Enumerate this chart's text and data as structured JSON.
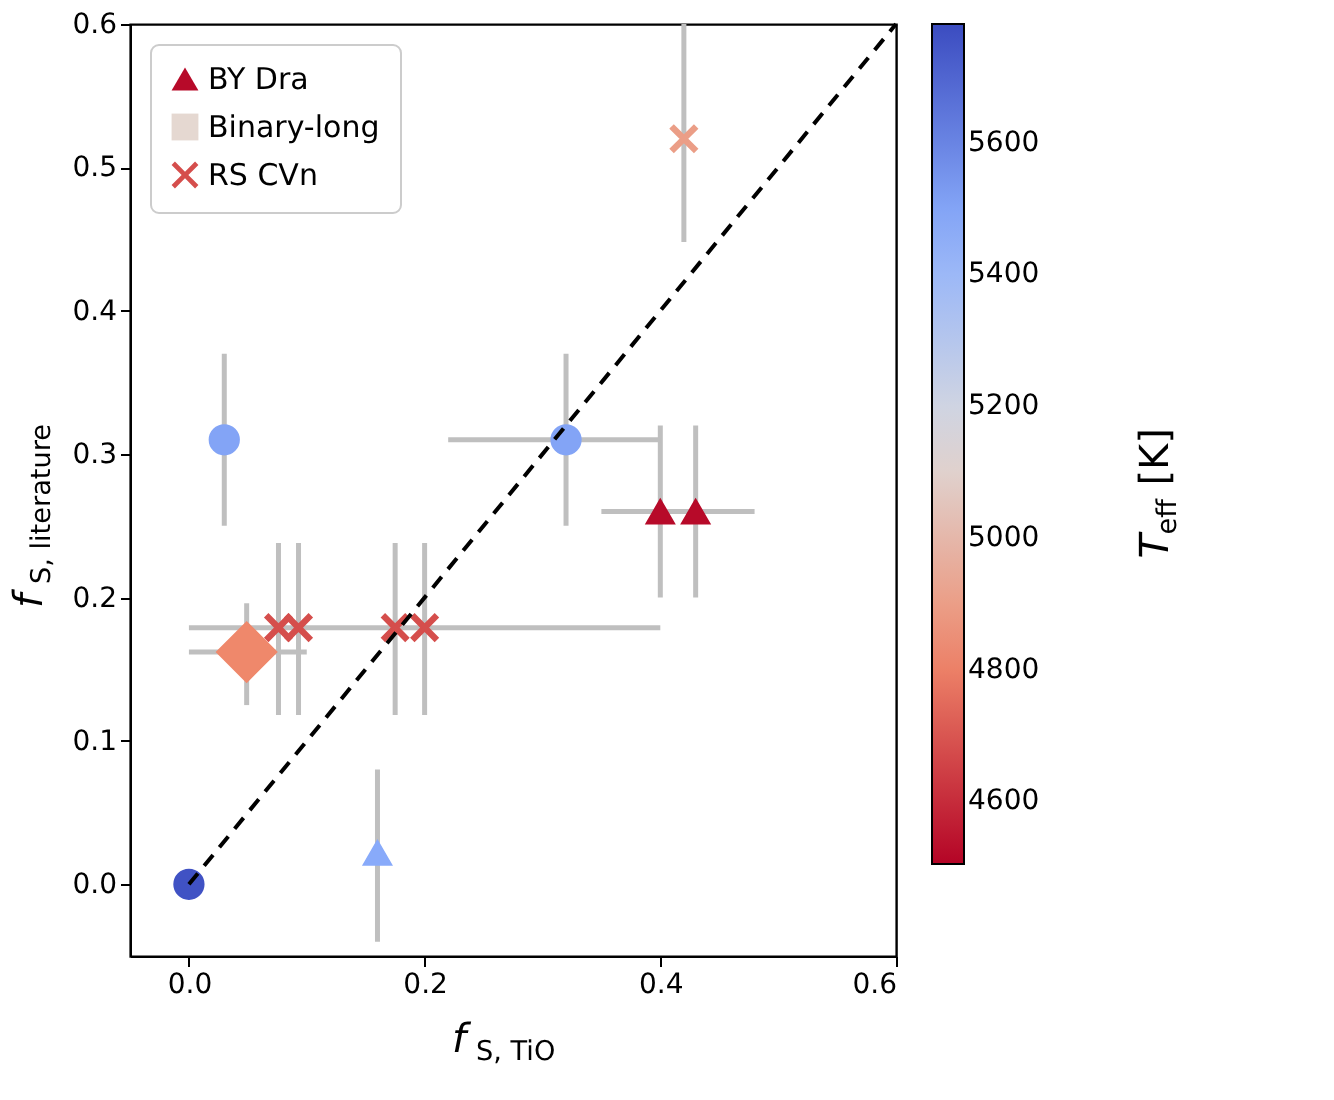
{
  "chart_data": {
    "type": "scatter",
    "xlabel": "f$_{S, TiO}$",
    "ylabel": "f$_{S, literature}$",
    "clabel": "T$_{eff}$ [K]",
    "xlim": [
      -0.05,
      0.6
    ],
    "ylim": [
      -0.05,
      0.6
    ],
    "xticks": [
      {
        "value": 0,
        "label": "0.0"
      },
      0.2,
      0.4,
      0.6
    ],
    "yticks": [
      {
        "value": 0,
        "label": "0.0"
      },
      0.1,
      0.2,
      0.3,
      0.4,
      0.5,
      0.6
    ],
    "clim": [
      4505,
      5780
    ],
    "cticks": [
      4600,
      4800,
      5000,
      5200,
      5400,
      5600
    ],
    "grid": false,
    "legend": "top left",
    "series": [
      {
        "name": "BY Dra",
        "marker": "triangle",
        "x": [
          0.4,
          0.43,
          0.16
        ],
        "values": [
          0.26,
          0.26,
          0.022
        ],
        "cvalues": [
          4520,
          4520,
          5480
        ],
        "colors": [
          "#b70a29",
          "#b70a29",
          "#88aafa"
        ],
        "errors": [
          [
            0.2,
            0.32
          ],
          [
            0.2,
            0.32
          ],
          [
            -0.04,
            0.08
          ]
        ],
        "xerrors": [
          null,
          [
            0.35,
            0.48
          ],
          null
        ]
      },
      {
        "name": "Binary-long",
        "color": "#e5d8d1",
        "marker": "square"
      },
      {
        "name": "RS CVn",
        "marker": "cross",
        "x": [
          0.076,
          0.093,
          0.175,
          0.2,
          0.42
        ],
        "values": [
          0.179,
          0.179,
          0.179,
          0.179,
          0.52
        ],
        "cvalues": [
          4680,
          4680,
          4680,
          4680,
          4900
        ],
        "colors": [
          "#d54e4c",
          "#d54e4c",
          "#d54e4c",
          "#d54e4c",
          "#eb9e87"
        ],
        "errors": [
          [
            0.118,
            0.238
          ],
          [
            0.118,
            0.238
          ],
          [
            0.118,
            0.238
          ],
          [
            0.118,
            0.238
          ],
          [
            0.448,
            0.6
          ]
        ],
        "xerrors": [
          null,
          null,
          null,
          [
            0.0,
            0.4
          ],
          null
        ]
      },
      {
        "marker": "circle",
        "x": [
          0.03,
          0.32,
          0.0
        ],
        "values": [
          0.31,
          0.31,
          0.0
        ],
        "cvalues": [
          5500,
          5500,
          5760
        ],
        "colors": [
          "#83a4f6",
          "#83a4f6",
          "#4052c4"
        ],
        "errors": [
          [
            0.25,
            0.37
          ],
          [
            0.25,
            0.37
          ],
          null
        ],
        "xerrors": [
          null,
          [
            0.22,
            0.4
          ],
          null
        ]
      },
      {
        "marker": "diamond",
        "x": [
          0.049
        ],
        "values": [
          0.162
        ],
        "cvalues": [
          4820
        ],
        "colors": [
          "#ef886b"
        ],
        "errors": [
          [
            0.125,
            0.196
          ]
        ],
        "xerrors": [
          [
            0.0,
            0.1
          ]
        ]
      },
      {
        "type": "line",
        "color": "#000000",
        "line_style": "dashed",
        "x": [
          0.0,
          0.6
        ],
        "values": [
          0.0,
          0.6
        ]
      }
    ]
  }
}
